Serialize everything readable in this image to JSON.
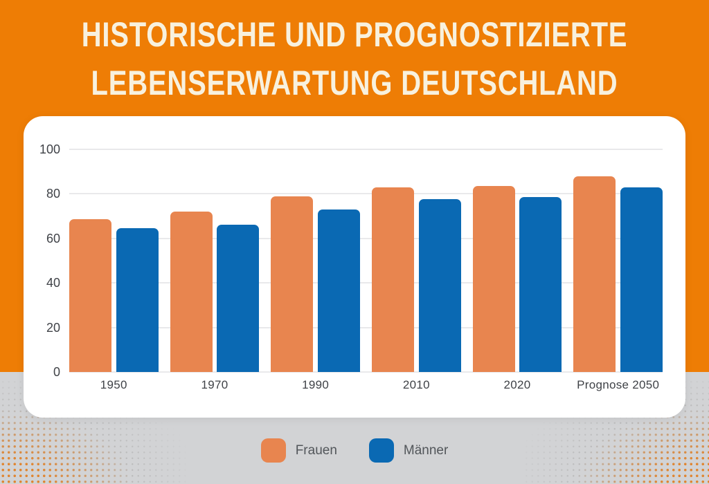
{
  "title": {
    "line1": "HISTORISCHE UND PROGNOSTIZIERTE",
    "line2": "LEBENSERWARTUNG DEUTSCHLAND"
  },
  "chart_data": {
    "type": "bar",
    "title": "Historische und prognostizierte Lebenserwartung Deutschland",
    "categories": [
      "1950",
      "1970",
      "1990",
      "2010",
      "2020",
      "Prognose 2050"
    ],
    "series": [
      {
        "name": "Frauen",
        "color": "#E8854F",
        "values": [
          68.5,
          72,
          79,
          82.8,
          83.5,
          88
        ]
      },
      {
        "name": "Männer",
        "color": "#0A69B3",
        "values": [
          64.6,
          66,
          73,
          77.7,
          78.6,
          83
        ]
      }
    ],
    "xlabel": "",
    "ylabel": "",
    "ylim": [
      0,
      100
    ],
    "yticks": [
      0,
      20,
      40,
      60,
      80,
      100
    ],
    "grid": true,
    "legend_position": "bottom"
  },
  "colors": {
    "background_orange": "#EE7D05",
    "footer_gray": "#D2D3D5",
    "card_white": "#FFFFFF",
    "title_text": "#F8F1DE",
    "gridline": "#E9E9EB",
    "axis_text": "#3F4247",
    "halftone_dot": "#E08530"
  }
}
